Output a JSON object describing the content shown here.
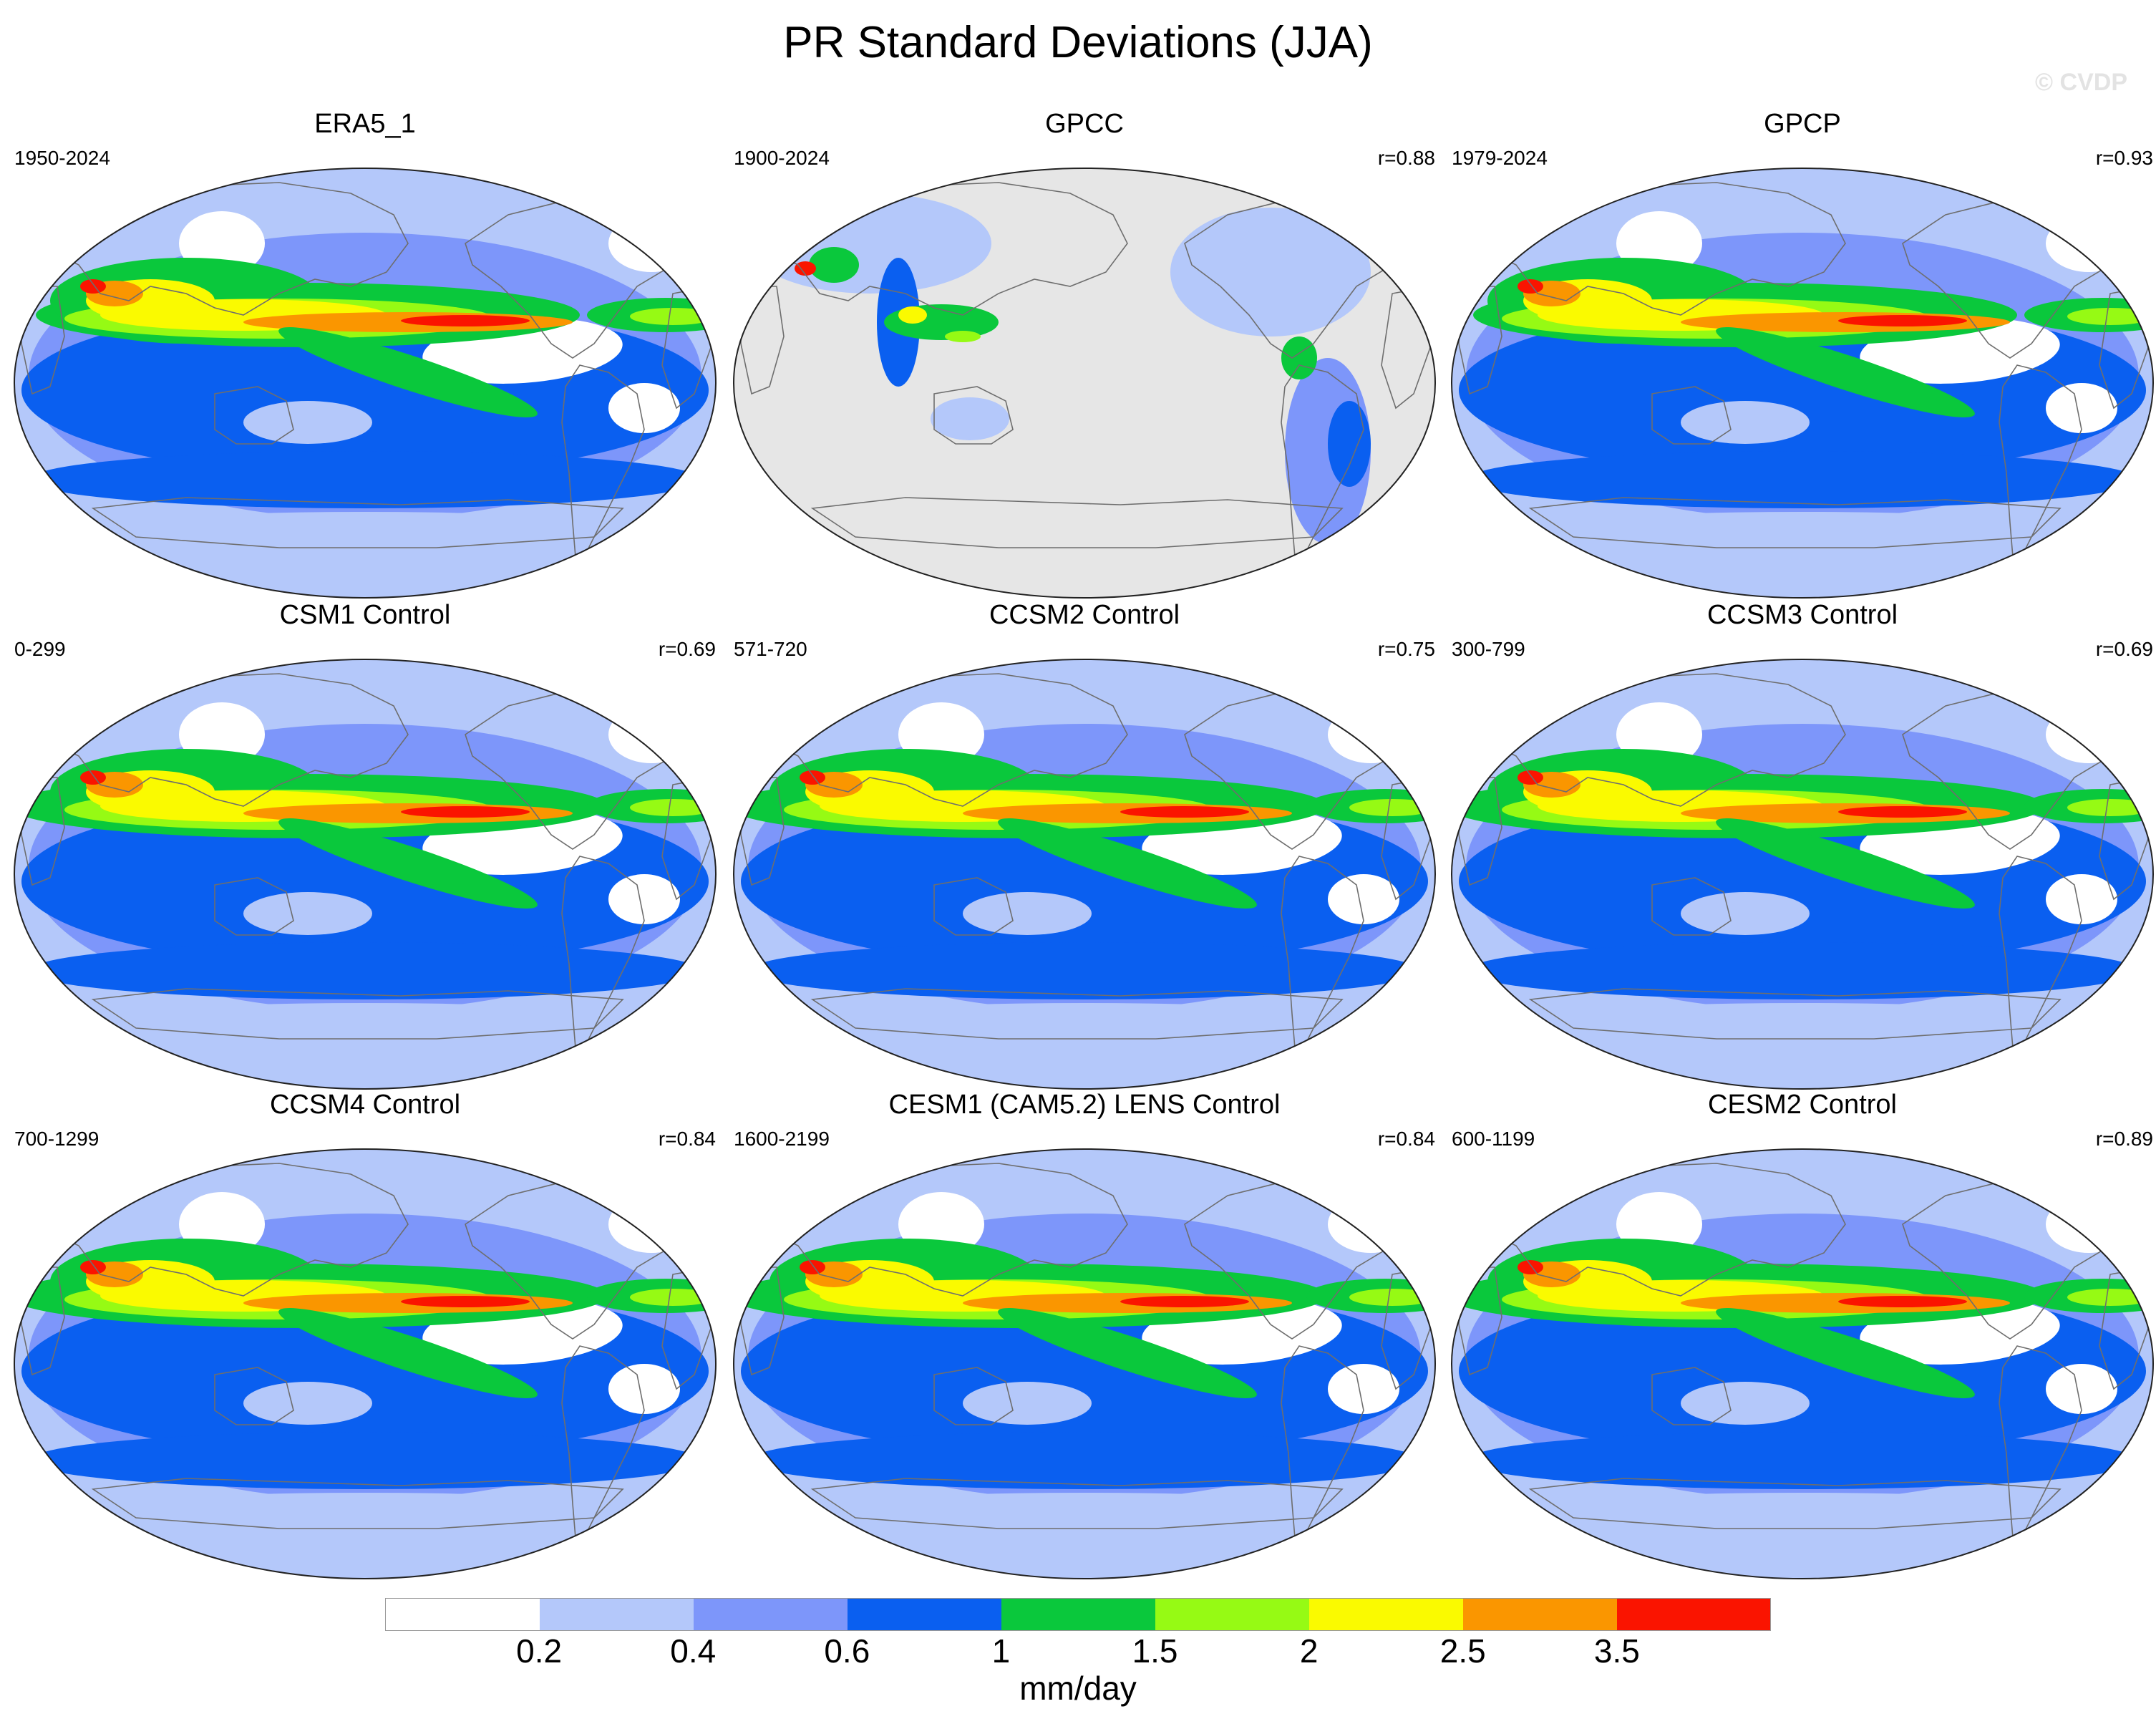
{
  "title": "PR Standard Deviations (JJA)",
  "watermark": "© CVDP",
  "panels": [
    {
      "name": "ERA5_1",
      "period": "1950-2024",
      "corr": "",
      "style": "obs"
    },
    {
      "name": "GPCC",
      "period": "1900-2024",
      "corr": "r=0.88",
      "style": "land"
    },
    {
      "name": "GPCP",
      "period": "1979-2024",
      "corr": "r=0.93",
      "style": "obs"
    },
    {
      "name": "CSM1 Control",
      "period": "0-299",
      "corr": "r=0.69",
      "style": "model"
    },
    {
      "name": "CCSM2 Control",
      "period": "571-720",
      "corr": "r=0.75",
      "style": "model"
    },
    {
      "name": "CCSM3 Control",
      "period": "300-799",
      "corr": "r=0.69",
      "style": "model"
    },
    {
      "name": "CCSM4 Control",
      "period": "700-1299",
      "corr": "r=0.84",
      "style": "model"
    },
    {
      "name": "CESM1 (CAM5.2) LENS Control",
      "period": "1600-2199",
      "corr": "r=0.84",
      "style": "model"
    },
    {
      "name": "CESM2 Control",
      "period": "600-1199",
      "corr": "r=0.89",
      "style": "model"
    }
  ],
  "colorbar": {
    "unit": "mm/day",
    "ticks": [
      "0.2",
      "0.4",
      "0.6",
      "1",
      "1.5",
      "2",
      "2.5",
      "3.5"
    ],
    "colors": [
      "#ffffff",
      "#b4c8fa",
      "#7d96fa",
      "#0a5ff0",
      "#0ac83c",
      "#96fa14",
      "#fafa00",
      "#fa9600",
      "#fa1400"
    ]
  },
  "land_mask_color": "#e6e6e6"
}
